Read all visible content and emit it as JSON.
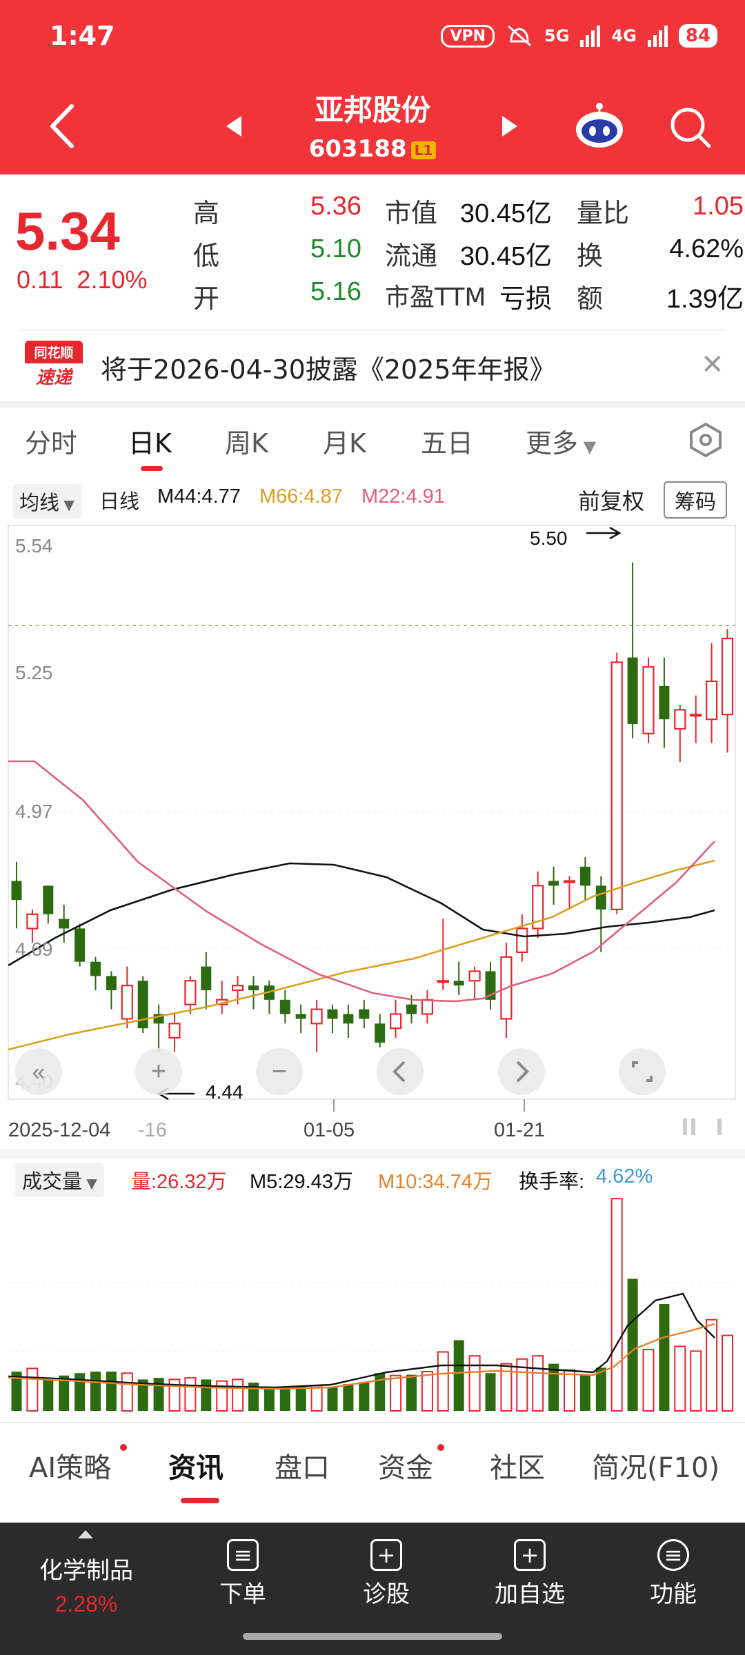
{
  "status": {
    "time": "1:47",
    "vpn": "VPN",
    "net1": "5G",
    "net2": "4G",
    "battery": "84"
  },
  "header": {
    "title": "亚邦股份",
    "code": "603188",
    "badge": "L1"
  },
  "quote": {
    "price": "5.34",
    "change": "0.11",
    "change_pct": "2.10%",
    "fields": [
      {
        "label": "高",
        "value": "5.36",
        "color": "red"
      },
      {
        "label": "低",
        "value": "5.10",
        "color": "green"
      },
      {
        "label": "开",
        "value": "5.16",
        "color": "green"
      },
      {
        "label": "市值",
        "value": "30.45亿",
        "color": "dark"
      },
      {
        "label": "流通",
        "value": "30.45亿",
        "color": "dark"
      },
      {
        "label": "市盈TTM",
        "value": "亏损",
        "color": "dark"
      },
      {
        "label": "量比",
        "value": "1.05",
        "color": "red"
      },
      {
        "label": "换",
        "value": "4.62%",
        "color": "dark"
      },
      {
        "label": "额",
        "value": "1.39亿",
        "color": "dark"
      }
    ]
  },
  "notice": {
    "logo_top": "同花顺",
    "logo_bottom": "速递",
    "text": "将于2026-04-30披露《2025年年报》"
  },
  "ktabs": [
    "分时",
    "日K",
    "周K",
    "月K",
    "五日",
    "更多"
  ],
  "legend": {
    "ma_chip": "均线",
    "period": "日线",
    "m44": "M44:4.77",
    "m66": "M66:4.87",
    "m22": "M22:4.91",
    "fq": "前复权",
    "chip_btn": "筹码"
  },
  "vol_legend": {
    "chip": "成交量",
    "vol": "量:26.32万",
    "m5": "M5:29.43万",
    "m10": "M10:34.74万",
    "turnover_label": "换手率:",
    "turnover": "4.62%"
  },
  "chart_data": {
    "type": "candlestick",
    "yticks": [
      "5.54",
      "5.25",
      "4.97",
      "4.69",
      "4.40"
    ],
    "xticks": [
      "2025-12-04",
      "-16",
      "01-05",
      "01-21"
    ],
    "high_label": "5.50",
    "low_label": "4.44",
    "colors": {
      "up": "#e8262e",
      "down": "#2d6b10",
      "m44": "#111111",
      "m66": "#d9a020",
      "m22": "#e0607a"
    }
  },
  "bottom_tabs": [
    "AI策略",
    "资讯",
    "盘口",
    "资金",
    "社区",
    "简况(F10)"
  ],
  "bottom_nav": {
    "sector_name": "化学制品",
    "sector_pct": "2.28%",
    "items": [
      "下单",
      "诊股",
      "加自选",
      "功能"
    ]
  }
}
